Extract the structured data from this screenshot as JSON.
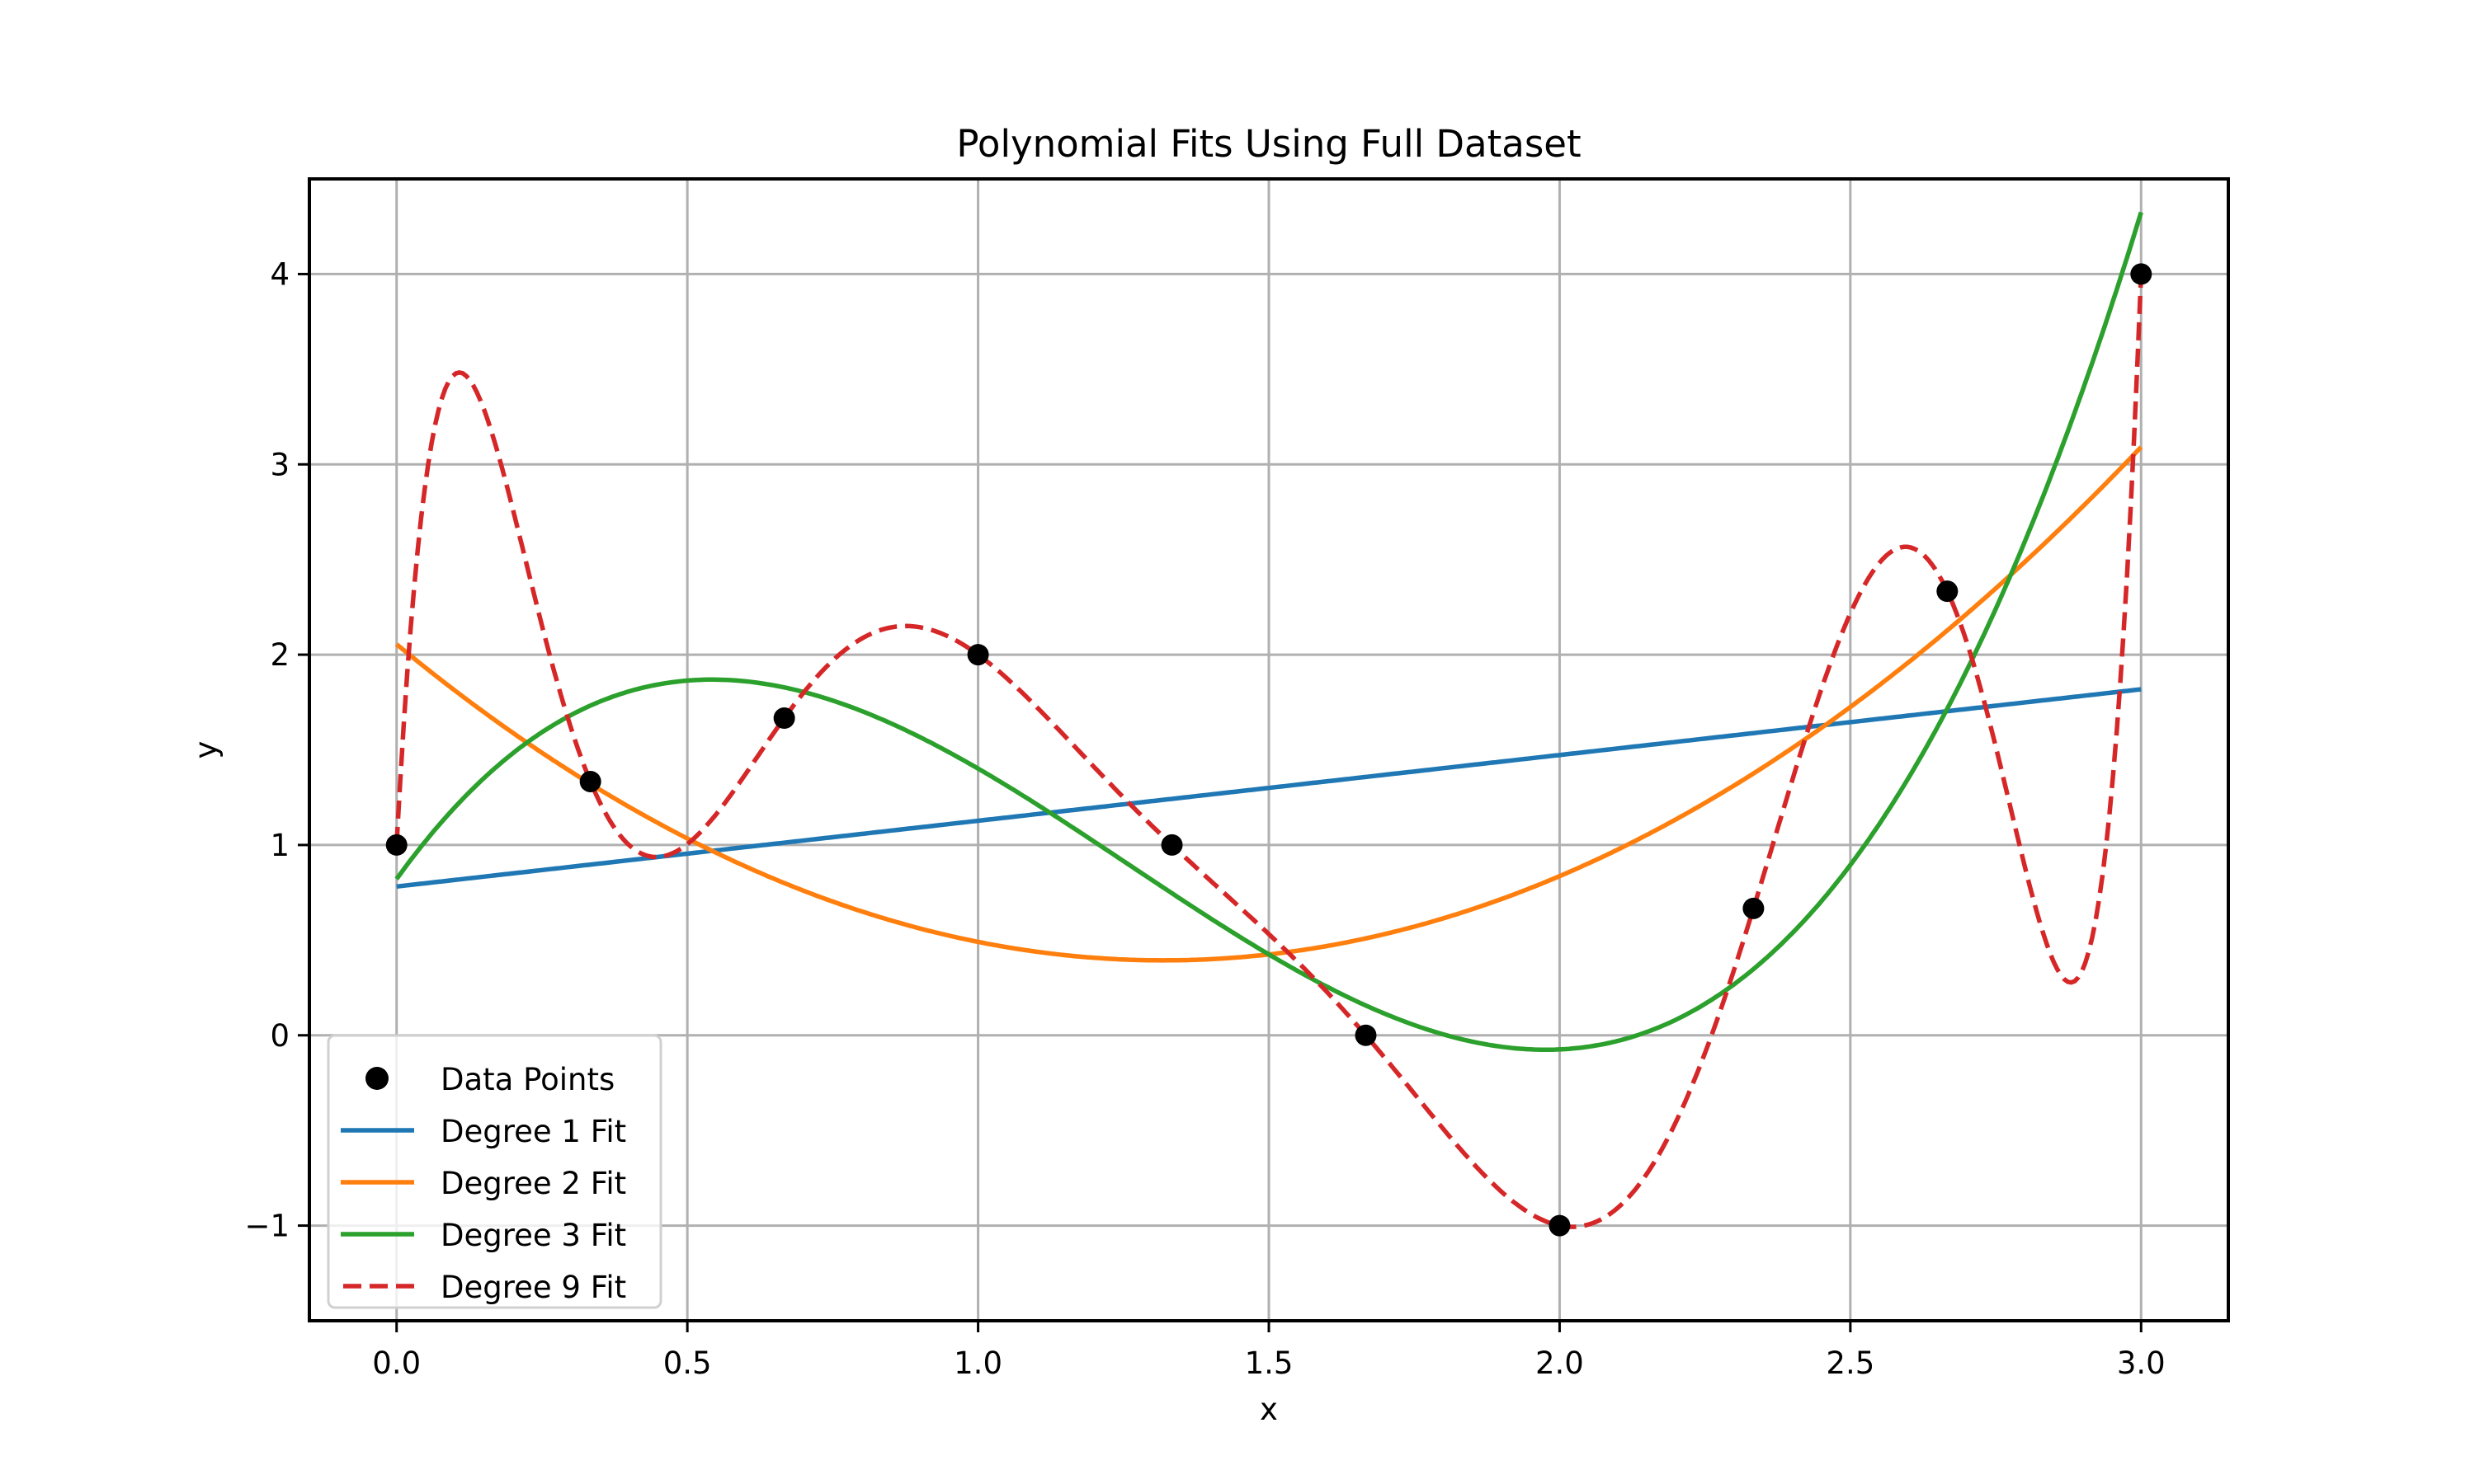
{
  "chart_data": {
    "type": "line",
    "title": "Polynomial Fits Using Full Dataset",
    "xlabel": "x",
    "ylabel": "y",
    "xlim": [
      -0.15,
      3.15
    ],
    "ylim": [
      -1.5,
      4.5
    ],
    "grid": true,
    "legend_position": "lower left",
    "xticks": [
      0.0,
      0.5,
      1.0,
      1.5,
      2.0,
      2.5,
      3.0
    ],
    "xtick_labels": [
      "0.0",
      "0.5",
      "1.0",
      "1.5",
      "2.0",
      "2.5",
      "3.0"
    ],
    "yticks": [
      -1,
      0,
      1,
      2,
      3,
      4
    ],
    "ytick_labels": [
      "−1",
      "0",
      "1",
      "2",
      "3",
      "4"
    ],
    "data_points": {
      "name": "Data Points",
      "color": "#000000",
      "x": [
        0.0,
        0.3333,
        0.6667,
        1.0,
        1.3333,
        1.6667,
        2.0,
        2.3333,
        2.6667,
        3.0
      ],
      "y": [
        1.0,
        1.3333,
        1.6667,
        2.0,
        1.0,
        0.0,
        -1.0,
        0.6667,
        2.3333,
        4.0
      ]
    },
    "series": [
      {
        "name": "Degree 1 Fit",
        "degree": 1,
        "color": "#1f77b4",
        "dash": false,
        "x_range": [
          0.0,
          3.0
        ],
        "approx_values": {
          "x=0": 0.78,
          "x=3": 1.82
        }
      },
      {
        "name": "Degree 2 Fit",
        "degree": 2,
        "color": "#ff7f0e",
        "dash": false,
        "x_range": [
          0.0,
          3.0
        ],
        "approx_values": {
          "x=0": 2.06,
          "x=1.3": 0.4,
          "x=3": 3.09
        }
      },
      {
        "name": "Degree 3 Fit",
        "degree": 3,
        "color": "#2ca02c",
        "dash": false,
        "x_range": [
          0.0,
          3.0
        ],
        "approx_values": {
          "x=0": 0.82,
          "x=0.55": 1.87,
          "x=1.97": -0.07,
          "x=3": 4.33
        }
      },
      {
        "name": "Degree 9 Fit",
        "degree": 9,
        "color": "#d62728",
        "dash": true,
        "x_range": [
          0.0,
          3.0
        ],
        "approx_values": {
          "x=0.1": 3.48,
          "x=0.45": 0.94,
          "x=0.87": 2.15,
          "x=2.02": -1.0,
          "x=2.6": 2.56,
          "x=2.88": 0.28,
          "x=3": 4.0
        }
      }
    ]
  },
  "legend": {
    "items": [
      {
        "label": "Data Points",
        "kind": "marker",
        "color": "#000000"
      },
      {
        "label": "Degree 1 Fit",
        "kind": "line",
        "color": "#1f77b4"
      },
      {
        "label": "Degree 2 Fit",
        "kind": "line",
        "color": "#ff7f0e"
      },
      {
        "label": "Degree 3 Fit",
        "kind": "line",
        "color": "#2ca02c"
      },
      {
        "label": "Degree 9 Fit",
        "kind": "dashed",
        "color": "#d62728"
      }
    ]
  },
  "style": {
    "grid_color": "#b0b0b0",
    "spine_color": "#000000",
    "legend_border": "#d0d0d0"
  }
}
